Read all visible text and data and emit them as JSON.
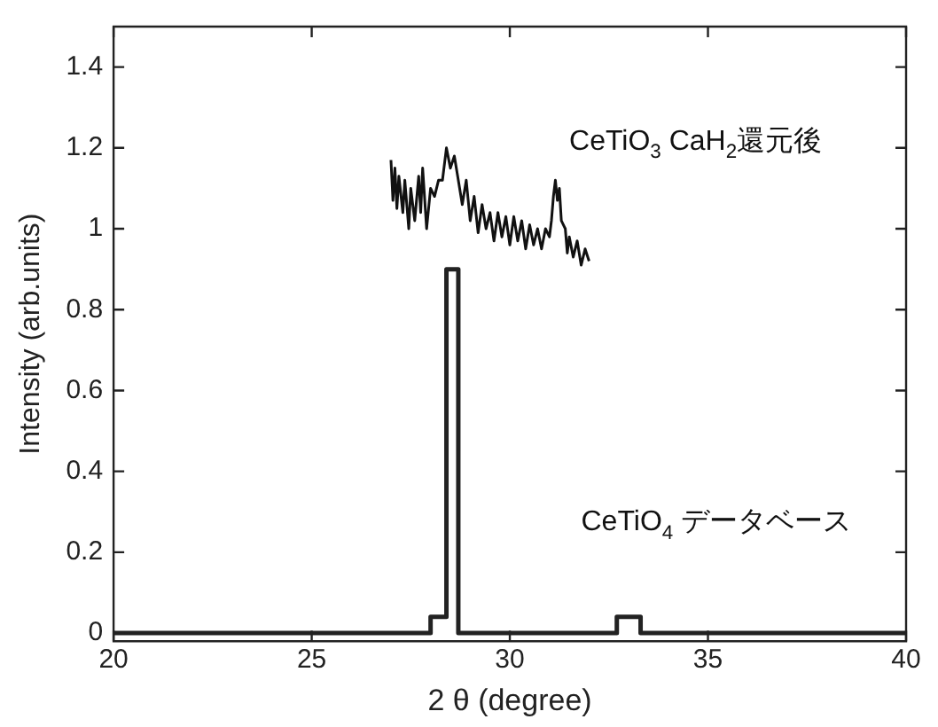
{
  "chart_data": {
    "type": "line",
    "xlabel": "2 θ (degree)",
    "ylabel": "Intensity (arb.units)",
    "xlim": [
      20,
      40
    ],
    "xticks": [
      20,
      25,
      30,
      35,
      40
    ],
    "ylim": [
      -0.02,
      1.5
    ],
    "yticks": [
      0,
      0.2,
      0.4,
      0.6,
      0.8,
      1,
      1.2,
      1.4
    ],
    "grid": false,
    "legend": false,
    "marker": "none",
    "line_style": "solid",
    "series": [
      {
        "name": "CeTiO$_{3}$ CaH$_{2}$還元後",
        "color": "#111111",
        "x": [
          27.0,
          27.05,
          27.1,
          27.15,
          27.2,
          27.3,
          27.35,
          27.45,
          27.5,
          27.6,
          27.7,
          27.75,
          27.8,
          27.9,
          28.0,
          28.1,
          28.2,
          28.3,
          28.4,
          28.5,
          28.6,
          28.7,
          28.8,
          28.9,
          29.0,
          29.1,
          29.2,
          29.3,
          29.4,
          29.5,
          29.6,
          29.7,
          29.8,
          29.9,
          30.0,
          30.1,
          30.2,
          30.3,
          30.4,
          30.5,
          30.6,
          30.7,
          30.8,
          30.9,
          31.0,
          31.05,
          31.1,
          31.15,
          31.2,
          31.25,
          31.3,
          31.4,
          31.45,
          31.5,
          31.6,
          31.7,
          31.8,
          31.9,
          32.0
        ],
        "values": [
          1.17,
          1.07,
          1.15,
          1.05,
          1.13,
          1.04,
          1.12,
          1.0,
          1.1,
          1.02,
          1.13,
          1.04,
          1.15,
          1.0,
          1.1,
          1.08,
          1.12,
          1.12,
          1.2,
          1.15,
          1.18,
          1.12,
          1.06,
          1.12,
          1.02,
          1.08,
          0.99,
          1.06,
          1.0,
          1.04,
          0.97,
          1.04,
          0.98,
          1.03,
          0.96,
          1.03,
          0.97,
          1.02,
          0.95,
          1.01,
          0.96,
          1.0,
          0.95,
          1.0,
          0.98,
          1.02,
          1.08,
          1.12,
          1.07,
          1.1,
          1.02,
          1.0,
          0.94,
          0.98,
          0.93,
          0.97,
          0.91,
          0.95,
          0.92
        ]
      },
      {
        "name": "CeTiO$_{4}$ データベース",
        "type": "step",
        "color": "#222222",
        "x": [
          20,
          28.0,
          28.4,
          28.7,
          32.7,
          33.3,
          40
        ],
        "values": [
          0,
          0.04,
          0.9,
          0,
          0.04,
          0,
          0
        ]
      }
    ]
  }
}
